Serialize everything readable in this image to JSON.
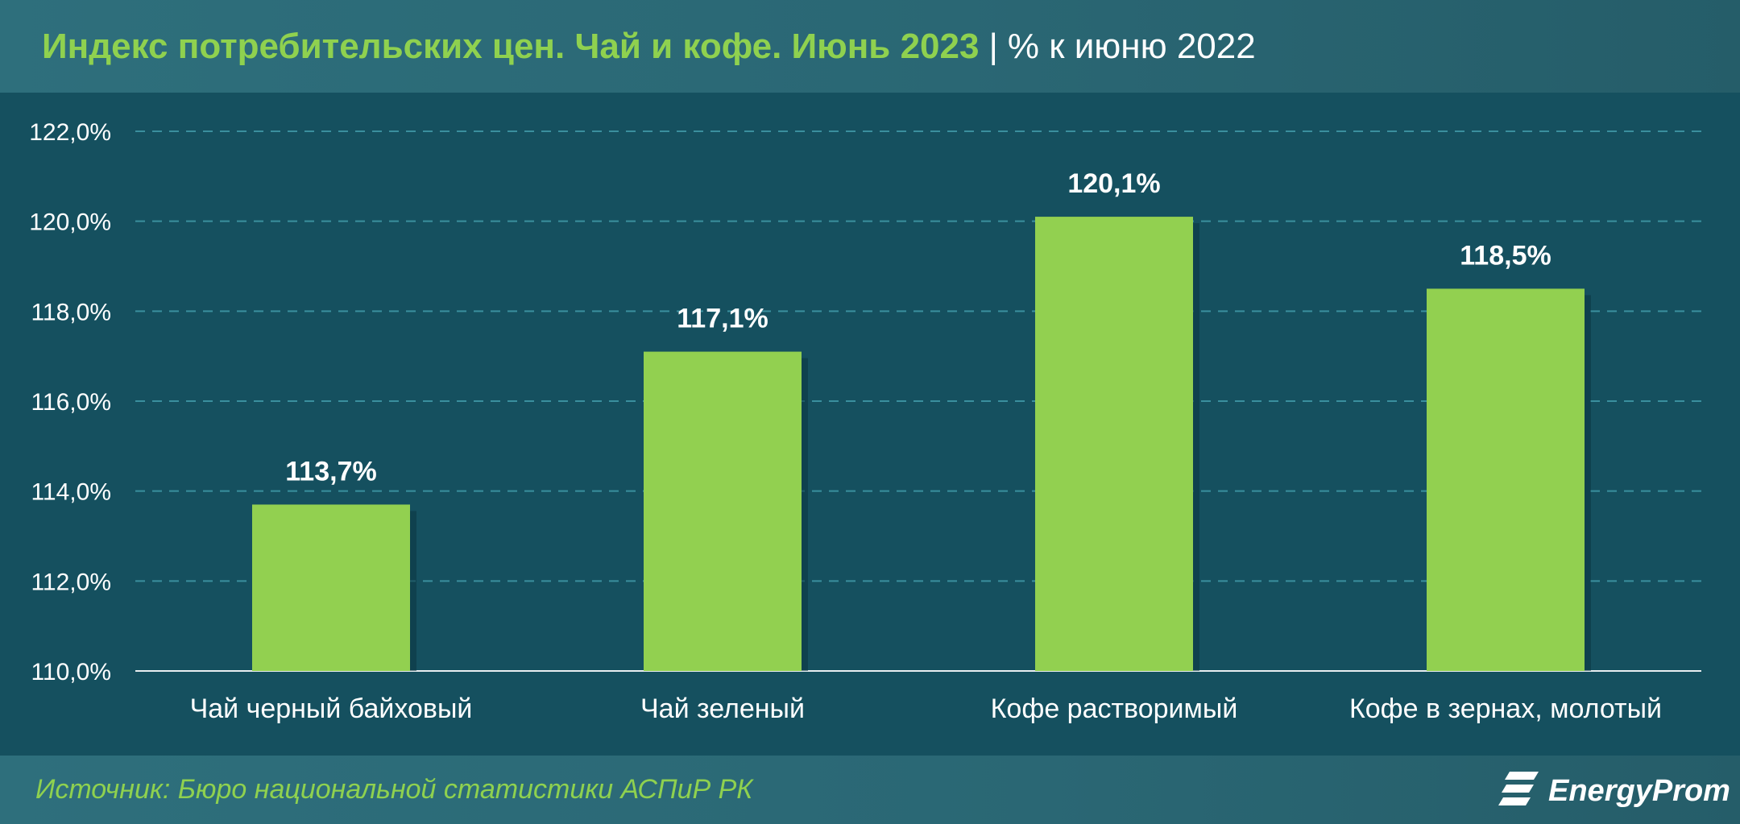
{
  "header": {
    "title_main": "Индекс потребительских цен. Чай и кофе. Июнь 2023",
    "separator": "|",
    "title_sub": "% к июню 2022"
  },
  "chart_data": {
    "type": "bar",
    "title": "Индекс потребительских цен. Чай и кофе. Июнь 2023",
    "subtitle": "% к июню 2022",
    "categories": [
      "Чай черный байховый",
      "Чай зеленый",
      "Кофе растворимый",
      "Кофе в зернах, молотый"
    ],
    "values": [
      113.7,
      117.1,
      120.1,
      118.5
    ],
    "value_labels": [
      "113,7%",
      "117,1%",
      "120,1%",
      "118,5%"
    ],
    "ylim": [
      110,
      122
    ],
    "yticks": [
      110,
      112,
      114,
      116,
      118,
      120,
      122
    ],
    "ytick_labels": [
      "110,0%",
      "112,0%",
      "114,0%",
      "116,0%",
      "118,0%",
      "120,0%",
      "122,0%"
    ],
    "grid": true,
    "bar_color": "#92d050",
    "grid_color": "#3a8f9e"
  },
  "footer": {
    "source": "Источник: Бюро национальной статистики АСПиР РК",
    "brand": "EnergyProm"
  },
  "colors": {
    "background": "#15505f",
    "accent_green": "#8fd14f",
    "text_white": "#ffffff"
  }
}
